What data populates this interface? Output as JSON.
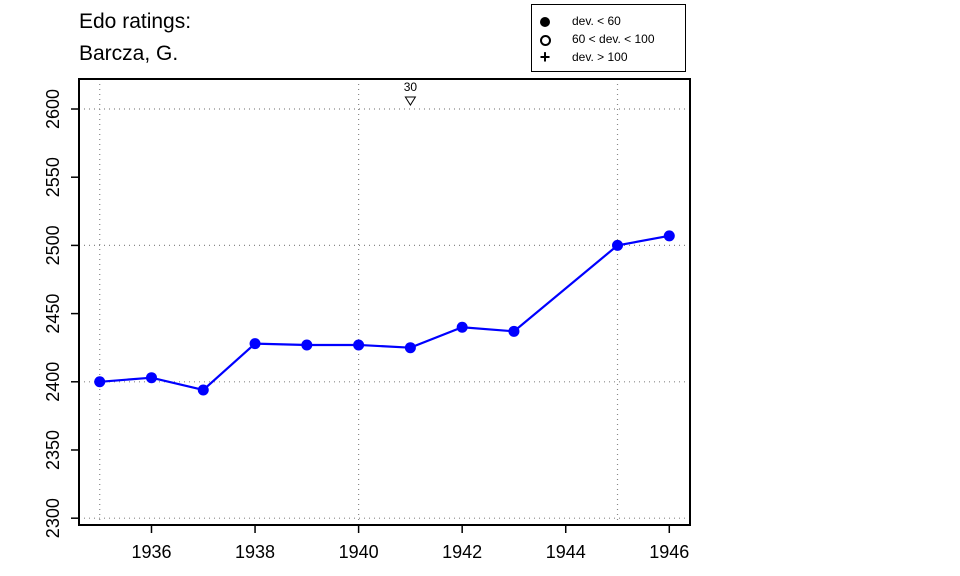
{
  "title_line1": "Edo ratings:",
  "title_line2": "Barcza, G.",
  "legend": {
    "items": [
      {
        "symbol": "filled-circle",
        "label": "dev. < 60"
      },
      {
        "symbol": "open-circle",
        "label": "60 < dev. < 100"
      },
      {
        "symbol": "plus",
        "label": "dev. > 100"
      }
    ]
  },
  "colors": {
    "series": "#0000ff",
    "grid": "#888888"
  },
  "chart_data": {
    "type": "line",
    "title": "Edo ratings: Barcza, G.",
    "xlim": [
      1934.6,
      1946.4
    ],
    "ylim": [
      2295,
      2622
    ],
    "x_ticks": [
      1936,
      1938,
      1940,
      1942,
      1944,
      1946
    ],
    "y_ticks": [
      2300,
      2350,
      2400,
      2450,
      2500,
      2550,
      2600
    ],
    "x_grid": [
      1935,
      1940,
      1945
    ],
    "y_grid": [
      2300,
      2400,
      2500,
      2600
    ],
    "grid": true,
    "legend_placement": "top-right",
    "series": [
      {
        "x": [
          1935,
          1936,
          1937,
          1938,
          1939,
          1940,
          1941,
          1942,
          1943,
          1945,
          1946
        ],
        "y": [
          2400,
          2403,
          2394,
          2428,
          2427,
          2427,
          2425,
          2440,
          2437,
          2500,
          2507
        ]
      }
    ],
    "annotations": [
      {
        "x": 1941,
        "label": "30",
        "marker": "down-triangle-offscale"
      }
    ]
  }
}
